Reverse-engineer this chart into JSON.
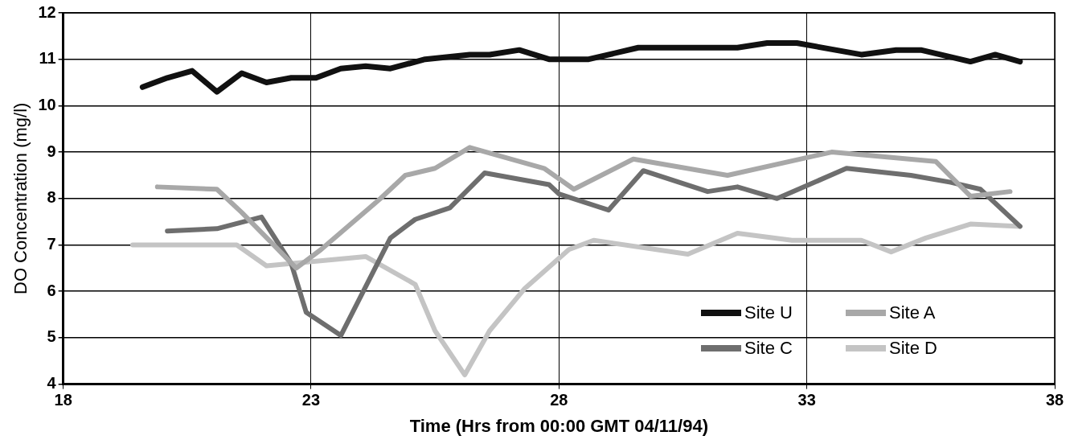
{
  "chart_data": {
    "type": "line",
    "xlabel": "Time (Hrs from 00:00 GMT 04/11/94)",
    "ylabel": "DO Concentration (mg/l)",
    "xlim": [
      18,
      38
    ],
    "xticks": [
      18,
      23,
      28,
      33,
      38
    ],
    "ylim": [
      4,
      12
    ],
    "yticks": [
      4,
      5,
      6,
      7,
      8,
      9,
      10,
      11,
      12
    ],
    "grid": true,
    "legend": "bottom right",
    "marker": "none",
    "line_style": "solid",
    "series": [
      {
        "name": "Site U",
        "color": "#111111",
        "x": [
          19.6,
          20.1,
          20.6,
          21.1,
          21.6,
          22.1,
          22.6,
          23.1,
          23.6,
          24.1,
          24.6,
          25.3,
          26.2,
          26.6,
          27.2,
          27.8,
          28.2,
          28.6,
          29.6,
          31.6,
          32.2,
          32.8,
          34.1,
          34.8,
          35.3,
          36.3,
          36.8,
          37.3
        ],
        "values": [
          10.4,
          10.6,
          10.75,
          10.3,
          10.7,
          10.5,
          10.6,
          10.6,
          10.8,
          10.85,
          10.8,
          11.0,
          11.1,
          11.1,
          11.2,
          11.0,
          11.0,
          11.0,
          11.25,
          11.25,
          11.35,
          11.35,
          11.1,
          11.2,
          11.2,
          10.95,
          11.1,
          10.95
        ]
      },
      {
        "name": "Site A",
        "color": "#a8a8a8",
        "x": [
          19.9,
          21.1,
          21.6,
          22.2,
          22.7,
          23.2,
          24.4,
          24.9,
          25.5,
          26.2,
          27.7,
          28.3,
          29.5,
          31.4,
          33.5,
          35.6,
          36.3,
          37.1
        ],
        "values": [
          8.25,
          8.2,
          7.7,
          7.05,
          6.5,
          6.9,
          8.0,
          8.5,
          8.65,
          9.1,
          8.65,
          8.2,
          8.85,
          8.5,
          9.0,
          8.8,
          8.05,
          8.15
        ]
      },
      {
        "name": "Site C",
        "color": "#6e6e6e",
        "x": [
          20.1,
          21.1,
          22.0,
          22.6,
          22.9,
          23.6,
          24.6,
          25.1,
          25.8,
          26.5,
          27.8,
          28.0,
          29.0,
          29.7,
          31.0,
          31.6,
          32.4,
          33.8,
          35.1,
          35.9,
          36.5,
          37.3
        ],
        "values": [
          7.3,
          7.35,
          7.6,
          6.6,
          5.55,
          5.05,
          7.15,
          7.55,
          7.8,
          8.55,
          8.3,
          8.1,
          7.75,
          8.6,
          8.15,
          8.25,
          8.0,
          8.65,
          8.5,
          8.35,
          8.2,
          7.4
        ]
      },
      {
        "name": "Site D",
        "color": "#c4c4c4",
        "x": [
          19.4,
          21.5,
          22.1,
          24.1,
          25.1,
          25.5,
          26.1,
          26.6,
          27.3,
          28.2,
          28.7,
          30.6,
          31.6,
          32.7,
          34.1,
          34.7,
          35.4,
          36.3,
          37.3
        ],
        "values": [
          7.0,
          7.0,
          6.55,
          6.75,
          6.15,
          5.15,
          4.2,
          5.15,
          6.05,
          6.9,
          7.1,
          6.8,
          7.25,
          7.1,
          7.1,
          6.85,
          7.15,
          7.45,
          7.4
        ]
      }
    ]
  }
}
